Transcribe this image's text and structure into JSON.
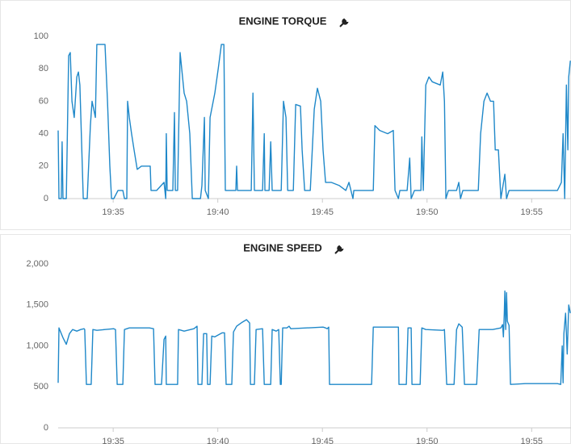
{
  "chart_data": [
    {
      "type": "line",
      "title": "ENGINE TORQUE",
      "color": "#1f88c9",
      "grid": false,
      "xlim": [
        1172.37,
        1196.88
      ],
      "xticks": [
        {
          "value": 1175,
          "label": "19:35"
        },
        {
          "value": 1180,
          "label": "19:40"
        },
        {
          "value": 1185,
          "label": "19:45"
        },
        {
          "value": 1190,
          "label": "19:50"
        },
        {
          "value": 1195,
          "label": "19:55"
        }
      ],
      "ylim": [
        0,
        100
      ],
      "yticks": [
        0,
        20,
        40,
        60,
        80,
        100
      ],
      "x": [
        1172.37,
        1172.41,
        1172.52,
        1172.56,
        1172.6,
        1172.76,
        1172.87,
        1172.95,
        1173.03,
        1173.14,
        1173.26,
        1173.34,
        1173.41,
        1173.49,
        1173.57,
        1173.76,
        1173.91,
        1173.99,
        1174.15,
        1174.22,
        1174.61,
        1174.73,
        1174.84,
        1174.92,
        1175.03,
        1175.23,
        1175.46,
        1175.54,
        1175.65,
        1175.69,
        1175.77,
        1175.88,
        1176.0,
        1176.15,
        1176.35,
        1176.77,
        1176.81,
        1177.08,
        1177.43,
        1177.51,
        1177.54,
        1177.58,
        1177.85,
        1177.93,
        1177.97,
        1178.08,
        1178.2,
        1178.39,
        1178.51,
        1178.66,
        1178.78,
        1179.17,
        1179.24,
        1179.36,
        1179.4,
        1179.55,
        1179.63,
        1179.86,
        1180.02,
        1180.17,
        1180.29,
        1180.36,
        1180.86,
        1180.9,
        1180.94,
        1181.6,
        1181.68,
        1181.75,
        1182.14,
        1182.22,
        1182.25,
        1182.45,
        1182.53,
        1182.6,
        1183.03,
        1183.14,
        1183.26,
        1183.34,
        1183.61,
        1183.72,
        1183.95,
        1184.03,
        1184.15,
        1184.42,
        1184.61,
        1184.76,
        1184.92,
        1185.03,
        1185.15,
        1185.42,
        1185.81,
        1186.12,
        1186.27,
        1186.46,
        1186.5,
        1187.43,
        1187.51,
        1187.74,
        1188.12,
        1188.39,
        1188.47,
        1188.63,
        1188.7,
        1189.05,
        1189.17,
        1189.24,
        1189.4,
        1189.71,
        1189.75,
        1189.82,
        1189.94,
        1190.09,
        1190.25,
        1190.63,
        1190.75,
        1190.83,
        1190.9,
        1191.02,
        1191.41,
        1191.52,
        1191.6,
        1191.71,
        1192.45,
        1192.56,
        1192.72,
        1192.87,
        1193.03,
        1193.18,
        1193.26,
        1193.41,
        1193.53,
        1193.72,
        1193.8,
        1193.92,
        1196.23,
        1196.42,
        1196.5,
        1196.58,
        1196.66,
        1196.73,
        1196.77,
        1196.85
      ],
      "values": [
        42,
        0,
        0,
        35,
        0,
        0,
        88,
        90,
        60,
        50,
        75,
        78,
        70,
        35,
        0,
        0,
        45,
        60,
        50,
        95,
        95,
        60,
        20,
        0,
        0,
        5,
        5,
        0,
        0,
        60,
        50,
        40,
        30,
        18,
        20,
        20,
        5,
        5,
        10,
        0,
        40,
        5,
        5,
        53,
        5,
        5,
        90,
        65,
        60,
        40,
        0,
        0,
        8,
        50,
        5,
        0,
        50,
        65,
        80,
        95,
        95,
        5,
        5,
        20,
        5,
        5,
        65,
        5,
        5,
        40,
        5,
        5,
        35,
        5,
        5,
        60,
        50,
        5,
        5,
        58,
        57,
        30,
        5,
        5,
        55,
        68,
        60,
        30,
        10,
        10,
        8,
        5,
        10,
        0,
        5,
        5,
        45,
        42,
        40,
        42,
        5,
        0,
        5,
        5,
        25,
        0,
        5,
        5,
        38,
        5,
        70,
        75,
        72,
        70,
        78,
        60,
        0,
        5,
        5,
        10,
        0,
        5,
        5,
        40,
        60,
        65,
        60,
        60,
        30,
        30,
        0,
        15,
        0,
        5,
        5,
        10,
        40,
        0,
        70,
        30,
        75,
        85
      ]
    },
    {
      "type": "line",
      "title": "ENGINE SPEED",
      "color": "#1f88c9",
      "grid": false,
      "xlim": [
        1172.37,
        1196.88
      ],
      "xticks": [
        {
          "value": 1175,
          "label": "19:35"
        },
        {
          "value": 1180,
          "label": "19:40"
        },
        {
          "value": 1185,
          "label": "19:45"
        },
        {
          "value": 1190,
          "label": "19:50"
        },
        {
          "value": 1195,
          "label": "19:55"
        }
      ],
      "ylim": [
        0,
        2000
      ],
      "yticks": [
        0,
        500,
        {
          "value": 1000,
          "label": "1,000"
        },
        {
          "value": 1500,
          "label": "1,500"
        },
        {
          "value": 2000,
          "label": "2,000"
        }
      ],
      "x": [
        1172.37,
        1172.41,
        1172.6,
        1172.76,
        1172.91,
        1173.06,
        1173.26,
        1173.45,
        1173.61,
        1173.64,
        1173.72,
        1173.84,
        1173.95,
        1174.03,
        1174.22,
        1174.61,
        1175.03,
        1175.11,
        1175.19,
        1175.46,
        1175.54,
        1175.77,
        1176.73,
        1176.93,
        1177.0,
        1177.31,
        1177.43,
        1177.51,
        1177.54,
        1177.89,
        1178.08,
        1178.12,
        1178.39,
        1178.86,
        1179.01,
        1179.05,
        1179.24,
        1179.32,
        1179.47,
        1179.51,
        1179.63,
        1179.71,
        1179.86,
        1180.21,
        1180.32,
        1180.4,
        1180.67,
        1180.75,
        1180.9,
        1181.17,
        1181.37,
        1181.52,
        1181.56,
        1181.75,
        1181.83,
        1182.14,
        1182.22,
        1182.53,
        1182.6,
        1182.79,
        1182.91,
        1182.99,
        1183.03,
        1183.1,
        1183.3,
        1183.41,
        1183.49,
        1185.03,
        1185.15,
        1185.23,
        1185.3,
        1185.34,
        1185.61,
        1187.35,
        1187.43,
        1188.51,
        1188.63,
        1188.66,
        1189.01,
        1189.09,
        1189.24,
        1189.28,
        1189.67,
        1189.75,
        1189.94,
        1190.75,
        1190.83,
        1190.94,
        1191.29,
        1191.41,
        1191.52,
        1191.68,
        1191.79,
        1192.37,
        1192.49,
        1193.14,
        1193.53,
        1193.61,
        1193.65,
        1193.69,
        1193.72,
        1193.76,
        1193.8,
        1193.84,
        1193.92,
        1193.99,
        1194.69,
        1196.23,
        1196.39,
        1196.46,
        1196.5,
        1196.54,
        1196.62,
        1196.7,
        1196.77,
        1196.85
      ],
      "values": [
        550,
        1220,
        1100,
        1020,
        1150,
        1200,
        1180,
        1200,
        1210,
        1200,
        530,
        530,
        530,
        1200,
        1190,
        1200,
        1210,
        1200,
        530,
        530,
        1200,
        1220,
        1220,
        1210,
        530,
        530,
        1080,
        1120,
        530,
        530,
        530,
        1200,
        1180,
        1210,
        1240,
        530,
        530,
        1150,
        1150,
        530,
        530,
        1120,
        1110,
        1160,
        1160,
        530,
        530,
        1170,
        1240,
        1290,
        1320,
        1280,
        530,
        530,
        1200,
        1210,
        530,
        530,
        1200,
        1180,
        1200,
        530,
        530,
        1220,
        1220,
        1240,
        1210,
        1230,
        1220,
        1210,
        1230,
        530,
        530,
        530,
        1230,
        1230,
        1230,
        530,
        530,
        1220,
        1220,
        530,
        530,
        1220,
        1200,
        1190,
        1200,
        530,
        530,
        1200,
        1270,
        1230,
        530,
        530,
        1200,
        1200,
        1220,
        1260,
        1110,
        1400,
        1670,
        1200,
        1650,
        1300,
        1250,
        530,
        540,
        540,
        530,
        1000,
        550,
        1150,
        1400,
        900,
        1500,
        1400
      ]
    }
  ]
}
